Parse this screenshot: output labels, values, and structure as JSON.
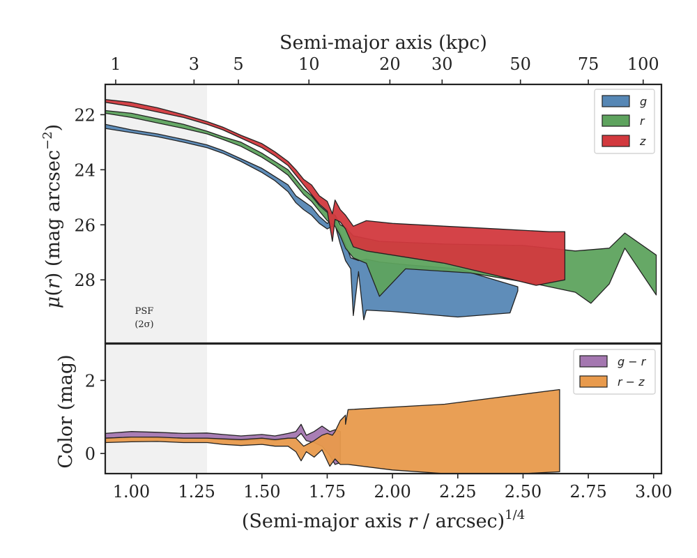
{
  "chart_data": [
    {
      "panel": "top",
      "type": "area",
      "title": "",
      "xlabel": "(Semi-major axis r / arcsec)^{1/4}",
      "ylabel": "μ(r) (mag arcsec⁻²)",
      "top_axis_label": "Semi-major axis (kpc)",
      "top_axis_ticks": [
        "1",
        "3",
        "5",
        "10",
        "20",
        "30",
        "50",
        "75",
        "100"
      ],
      "top_axis_tick_x": [
        0.94,
        1.24,
        1.41,
        1.68,
        1.99,
        2.19,
        2.49,
        2.75,
        2.96
      ],
      "xlim": [
        0.9,
        3.03
      ],
      "ylim": [
        30.3,
        20.9
      ],
      "y_inverted": true,
      "yticks": [
        "22",
        "24",
        "26",
        "28"
      ],
      "ytick_values": [
        22,
        24,
        26,
        28
      ],
      "grid": false,
      "legend_position": "top-right",
      "shaded_region": {
        "x_min": 0.9,
        "x_max": 1.29,
        "label_line1": "PSF",
        "label_line2": "(2σ)",
        "color": "#f1f1f1"
      },
      "series": [
        {
          "name": "g",
          "color": "#5687b5",
          "upper": [
            [
              0.9,
              22.35
            ],
            [
              1.0,
              22.55
            ],
            [
              1.1,
              22.7
            ],
            [
              1.2,
              22.9
            ],
            [
              1.29,
              23.1
            ],
            [
              1.35,
              23.3
            ],
            [
              1.42,
              23.6
            ],
            [
              1.5,
              23.95
            ],
            [
              1.55,
              24.25
            ],
            [
              1.6,
              24.55
            ],
            [
              1.63,
              24.95
            ],
            [
              1.66,
              25.15
            ],
            [
              1.69,
              25.35
            ],
            [
              1.72,
              25.7
            ],
            [
              1.75,
              25.95
            ],
            [
              1.78,
              25.75
            ],
            [
              1.8,
              26.3
            ],
            [
              1.82,
              26.7
            ],
            [
              1.84,
              27.2
            ],
            [
              1.87,
              27.3
            ],
            [
              1.9,
              27.25
            ],
            [
              1.95,
              27.35
            ],
            [
              2.05,
              27.45
            ],
            [
              2.25,
              27.6
            ],
            [
              2.48,
              28.25
            ]
          ],
          "lower": [
            [
              0.9,
              22.5
            ],
            [
              1.0,
              22.65
            ],
            [
              1.1,
              22.8
            ],
            [
              1.2,
              23.0
            ],
            [
              1.29,
              23.2
            ],
            [
              1.35,
              23.4
            ],
            [
              1.42,
              23.7
            ],
            [
              1.5,
              24.1
            ],
            [
              1.55,
              24.4
            ],
            [
              1.6,
              24.8
            ],
            [
              1.63,
              25.2
            ],
            [
              1.66,
              25.45
            ],
            [
              1.69,
              25.65
            ],
            [
              1.72,
              25.95
            ],
            [
              1.75,
              26.15
            ],
            [
              1.78,
              26.0
            ],
            [
              1.8,
              26.7
            ],
            [
              1.82,
              27.3
            ],
            [
              1.84,
              27.6
            ],
            [
              1.85,
              29.3
            ],
            [
              1.87,
              27.7
            ],
            [
              1.89,
              29.45
            ],
            [
              1.9,
              29.1
            ],
            [
              2.0,
              29.15
            ],
            [
              2.25,
              29.35
            ],
            [
              2.45,
              29.2
            ],
            [
              2.48,
              28.4
            ]
          ]
        },
        {
          "name": "r",
          "color": "#5ea35e",
          "upper": [
            [
              0.9,
              21.85
            ],
            [
              1.0,
              21.95
            ],
            [
              1.1,
              22.15
            ],
            [
              1.2,
              22.35
            ],
            [
              1.29,
              22.6
            ],
            [
              1.35,
              22.8
            ],
            [
              1.42,
              23.0
            ],
            [
              1.5,
              23.4
            ],
            [
              1.55,
              23.7
            ],
            [
              1.6,
              24.0
            ],
            [
              1.63,
              24.35
            ],
            [
              1.66,
              24.7
            ],
            [
              1.69,
              24.95
            ],
            [
              1.72,
              25.3
            ],
            [
              1.75,
              25.55
            ],
            [
              1.78,
              25.65
            ],
            [
              1.8,
              26.0
            ],
            [
              1.82,
              26.1
            ],
            [
              1.85,
              26.4
            ],
            [
              1.9,
              26.5
            ],
            [
              1.95,
              26.6
            ],
            [
              2.2,
              26.7
            ],
            [
              2.5,
              26.75
            ],
            [
              2.7,
              26.95
            ],
            [
              2.83,
              26.85
            ],
            [
              2.89,
              26.3
            ],
            [
              3.01,
              27.1
            ],
            [
              3.01,
              28.55
            ]
          ],
          "lower": [
            [
              0.9,
              21.95
            ],
            [
              1.0,
              22.1
            ],
            [
              1.1,
              22.3
            ],
            [
              1.2,
              22.5
            ],
            [
              1.29,
              22.7
            ],
            [
              1.35,
              22.9
            ],
            [
              1.42,
              23.15
            ],
            [
              1.5,
              23.55
            ],
            [
              1.55,
              23.85
            ],
            [
              1.6,
              24.2
            ],
            [
              1.63,
              24.55
            ],
            [
              1.66,
              24.9
            ],
            [
              1.69,
              25.15
            ],
            [
              1.72,
              25.5
            ],
            [
              1.75,
              25.85
            ],
            [
              1.78,
              26.05
            ],
            [
              1.8,
              26.4
            ],
            [
              1.82,
              26.85
            ],
            [
              1.85,
              27.2
            ],
            [
              1.9,
              27.4
            ],
            [
              1.95,
              28.6
            ],
            [
              2.05,
              27.6
            ],
            [
              2.3,
              27.75
            ],
            [
              2.55,
              28.15
            ],
            [
              2.7,
              28.45
            ],
            [
              2.76,
              28.85
            ],
            [
              2.83,
              28.15
            ],
            [
              2.89,
              26.85
            ],
            [
              3.01,
              28.55
            ]
          ]
        },
        {
          "name": "z",
          "color": "#d2393e",
          "upper": [
            [
              0.9,
              21.45
            ],
            [
              1.0,
              21.55
            ],
            [
              1.1,
              21.75
            ],
            [
              1.2,
              22.0
            ],
            [
              1.29,
              22.25
            ],
            [
              1.35,
              22.45
            ],
            [
              1.42,
              22.75
            ],
            [
              1.5,
              23.05
            ],
            [
              1.55,
              23.35
            ],
            [
              1.6,
              23.7
            ],
            [
              1.63,
              24.0
            ],
            [
              1.66,
              24.35
            ],
            [
              1.69,
              24.55
            ],
            [
              1.72,
              24.95
            ],
            [
              1.75,
              25.15
            ],
            [
              1.77,
              25.6
            ],
            [
              1.78,
              25.1
            ],
            [
              1.8,
              25.45
            ],
            [
              1.82,
              25.65
            ],
            [
              1.85,
              26.05
            ],
            [
              1.9,
              25.85
            ],
            [
              2.0,
              25.95
            ],
            [
              2.2,
              26.05
            ],
            [
              2.4,
              26.15
            ],
            [
              2.6,
              26.25
            ],
            [
              2.66,
              26.25
            ],
            [
              2.66,
              28.0
            ]
          ],
          "lower": [
            [
              0.9,
              21.55
            ],
            [
              1.0,
              21.7
            ],
            [
              1.1,
              21.9
            ],
            [
              1.2,
              22.1
            ],
            [
              1.29,
              22.35
            ],
            [
              1.35,
              22.55
            ],
            [
              1.42,
              22.85
            ],
            [
              1.5,
              23.2
            ],
            [
              1.55,
              23.5
            ],
            [
              1.6,
              23.85
            ],
            [
              1.63,
              24.2
            ],
            [
              1.66,
              24.55
            ],
            [
              1.69,
              24.9
            ],
            [
              1.72,
              25.25
            ],
            [
              1.75,
              25.5
            ],
            [
              1.77,
              26.6
            ],
            [
              1.78,
              25.8
            ],
            [
              1.8,
              25.9
            ],
            [
              1.82,
              26.15
            ],
            [
              1.85,
              26.8
            ],
            [
              1.9,
              26.95
            ],
            [
              2.0,
              27.1
            ],
            [
              2.2,
              27.4
            ],
            [
              2.4,
              27.85
            ],
            [
              2.55,
              28.2
            ],
            [
              2.66,
              28.0
            ]
          ]
        }
      ]
    },
    {
      "panel": "bottom",
      "type": "area",
      "title": "",
      "xlabel": "(Semi-major axis r / arcsec)^{1/4}",
      "ylabel": "Color (mag)",
      "xlim": [
        0.9,
        3.03
      ],
      "ylim": [
        -0.55,
        3.0
      ],
      "xticks": [
        "1.00",
        "1.25",
        "1.50",
        "1.75",
        "2.00",
        "2.25",
        "2.50",
        "2.75",
        "3.00"
      ],
      "xtick_values": [
        1.0,
        1.25,
        1.5,
        1.75,
        2.0,
        2.25,
        2.5,
        2.75,
        3.0
      ],
      "yticks": [
        "0",
        "2"
      ],
      "ytick_values": [
        0,
        2
      ],
      "grid": false,
      "legend_position": "top-right",
      "series": [
        {
          "name": "g − r",
          "color": "#a477b0",
          "upper": [
            [
              0.9,
              0.55
            ],
            [
              1.0,
              0.6
            ],
            [
              1.1,
              0.58
            ],
            [
              1.2,
              0.55
            ],
            [
              1.29,
              0.56
            ],
            [
              1.35,
              0.52
            ],
            [
              1.42,
              0.48
            ],
            [
              1.5,
              0.52
            ],
            [
              1.55,
              0.48
            ],
            [
              1.6,
              0.55
            ],
            [
              1.63,
              0.6
            ],
            [
              1.65,
              0.8
            ],
            [
              1.67,
              0.5
            ],
            [
              1.7,
              0.6
            ],
            [
              1.73,
              0.75
            ],
            [
              1.76,
              0.6
            ],
            [
              1.78,
              0.65
            ],
            [
              1.8,
              0.6
            ]
          ],
          "lower": [
            [
              0.9,
              0.42
            ],
            [
              1.0,
              0.45
            ],
            [
              1.1,
              0.43
            ],
            [
              1.2,
              0.42
            ],
            [
              1.29,
              0.41
            ],
            [
              1.35,
              0.38
            ],
            [
              1.42,
              0.35
            ],
            [
              1.5,
              0.38
            ],
            [
              1.55,
              0.35
            ],
            [
              1.6,
              0.4
            ],
            [
              1.63,
              0.42
            ],
            [
              1.65,
              0.55
            ],
            [
              1.67,
              0.35
            ],
            [
              1.7,
              0.3
            ],
            [
              1.73,
              0.2
            ],
            [
              1.76,
              -0.05
            ],
            [
              1.78,
              -0.3
            ],
            [
              1.8,
              -0.25
            ]
          ]
        },
        {
          "name": "r − z",
          "color": "#e89a4c",
          "upper": [
            [
              0.9,
              0.42
            ],
            [
              1.0,
              0.45
            ],
            [
              1.1,
              0.45
            ],
            [
              1.2,
              0.42
            ],
            [
              1.29,
              0.42
            ],
            [
              1.35,
              0.4
            ],
            [
              1.42,
              0.38
            ],
            [
              1.5,
              0.42
            ],
            [
              1.55,
              0.38
            ],
            [
              1.6,
              0.42
            ],
            [
              1.63,
              0.42
            ],
            [
              1.66,
              0.2
            ],
            [
              1.7,
              0.35
            ],
            [
              1.73,
              0.5
            ],
            [
              1.75,
              0.55
            ],
            [
              1.77,
              0.5
            ],
            [
              1.78,
              0.6
            ],
            [
              1.8,
              0.9
            ],
            [
              1.82,
              1.05
            ],
            [
              1.82,
              0.8
            ],
            [
              1.83,
              1.2
            ],
            [
              2.2,
              1.35
            ],
            [
              2.64,
              1.75
            ],
            [
              2.64,
              -0.5
            ]
          ],
          "lower": [
            [
              0.9,
              0.3
            ],
            [
              1.0,
              0.32
            ],
            [
              1.1,
              0.33
            ],
            [
              1.2,
              0.3
            ],
            [
              1.29,
              0.3
            ],
            [
              1.35,
              0.25
            ],
            [
              1.42,
              0.22
            ],
            [
              1.5,
              0.25
            ],
            [
              1.55,
              0.2
            ],
            [
              1.6,
              0.2
            ],
            [
              1.63,
              0.05
            ],
            [
              1.65,
              -0.2
            ],
            [
              1.67,
              0.05
            ],
            [
              1.7,
              -0.1
            ],
            [
              1.73,
              0.1
            ],
            [
              1.76,
              -0.35
            ],
            [
              1.78,
              -0.15
            ],
            [
              1.8,
              -0.3
            ],
            [
              1.83,
              -0.3
            ],
            [
              2.0,
              -0.45
            ],
            [
              2.3,
              -0.6
            ],
            [
              2.5,
              -0.55
            ],
            [
              2.64,
              -0.5
            ]
          ]
        }
      ]
    }
  ]
}
